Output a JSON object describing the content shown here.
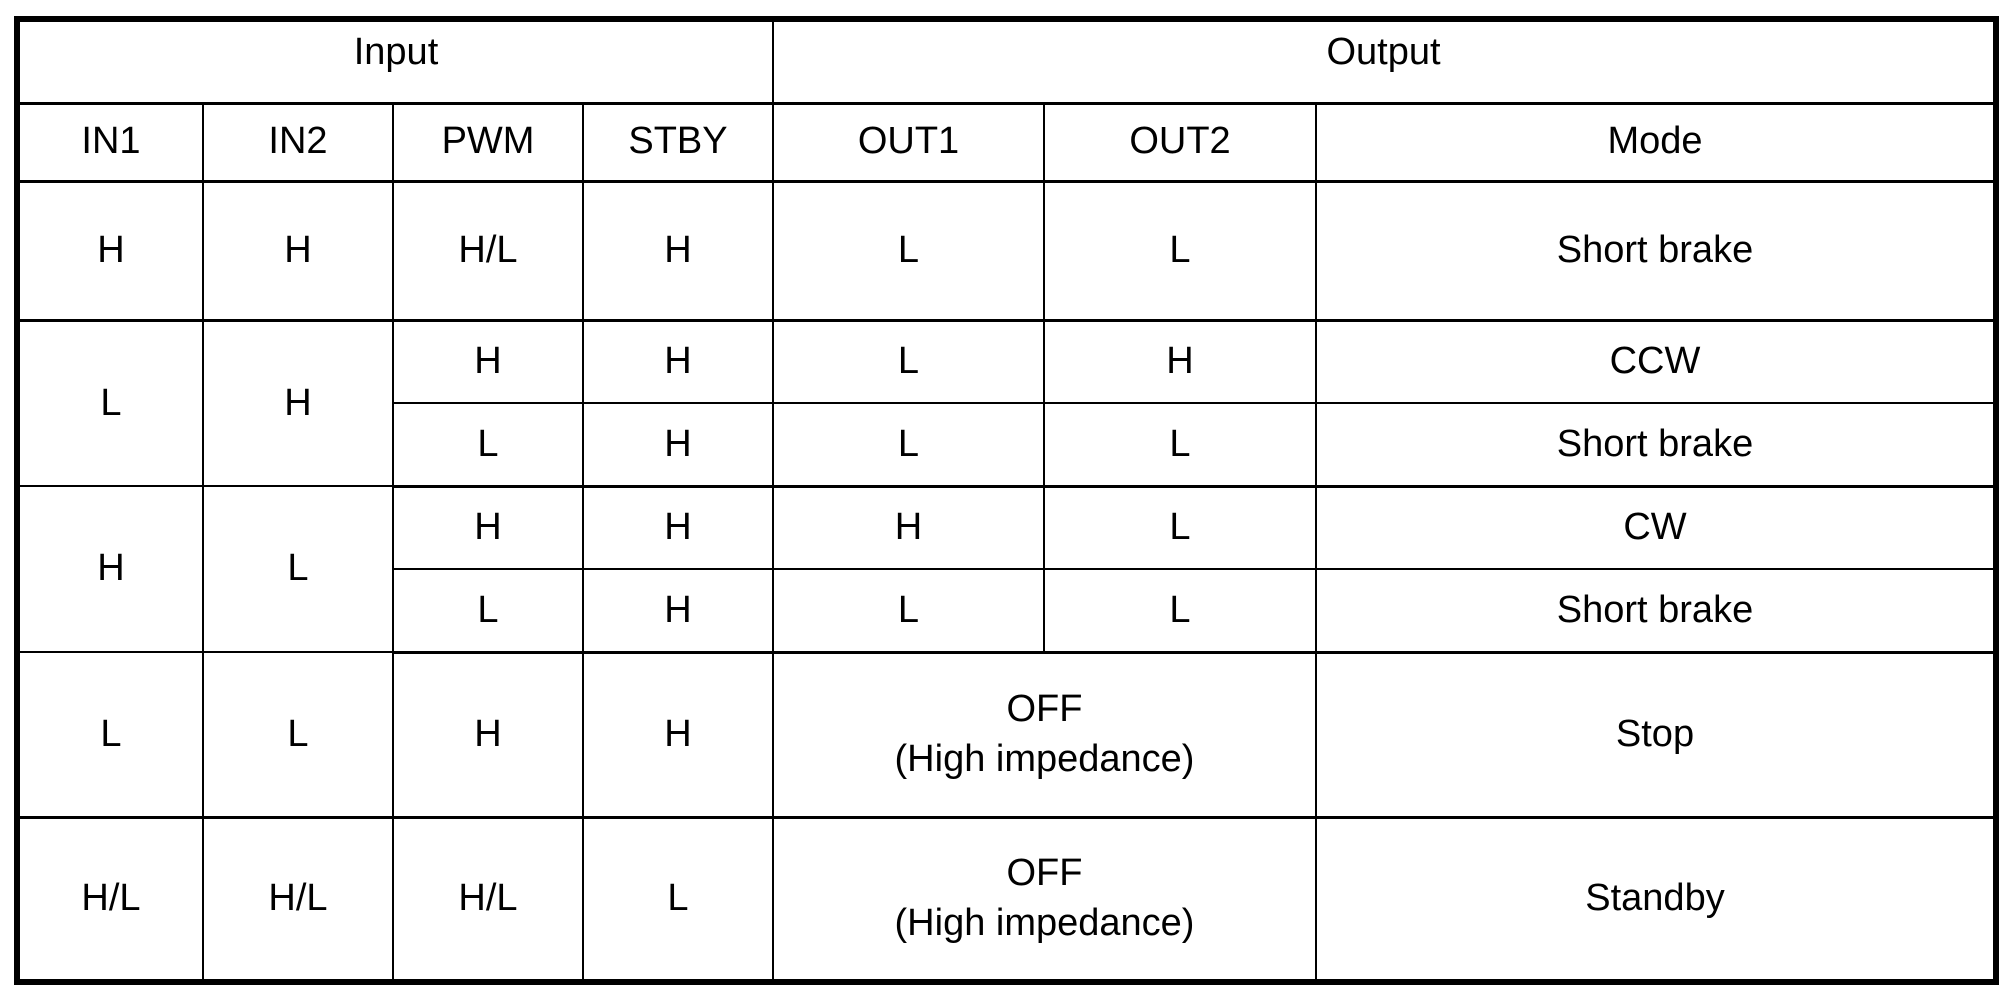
{
  "groups": {
    "input": "Input",
    "output": "Output"
  },
  "columns": [
    "IN1",
    "IN2",
    "PWM",
    "STBY",
    "OUT1",
    "OUT2",
    "Mode"
  ],
  "rows": [
    {
      "in1": "H",
      "in2": "H",
      "pwm": "H/L",
      "stby": "H",
      "out1": "L",
      "out2": "L",
      "mode": "Short brake"
    },
    {
      "in1": "L",
      "in2": "H",
      "pwm": "H",
      "stby": "H",
      "out1": "L",
      "out2": "H",
      "mode": "CCW"
    },
    {
      "pwm": "L",
      "stby": "H",
      "out1": "L",
      "out2": "L",
      "mode": "Short brake"
    },
    {
      "in1": "H",
      "in2": "L",
      "pwm": "H",
      "stby": "H",
      "out1": "H",
      "out2": "L",
      "mode": "CW"
    },
    {
      "pwm": "L",
      "stby": "H",
      "out1": "L",
      "out2": "L",
      "mode": "Short brake"
    },
    {
      "in1": "L",
      "in2": "L",
      "pwm": "H",
      "stby": "H",
      "out_line1": "OFF",
      "out_line2": "(High impedance)",
      "mode": "Stop"
    },
    {
      "in1": "H/L",
      "in2": "H/L",
      "pwm": "H/L",
      "stby": "L",
      "out_line1": "OFF",
      "out_line2": "(High impedance)",
      "mode": "Standby"
    }
  ]
}
